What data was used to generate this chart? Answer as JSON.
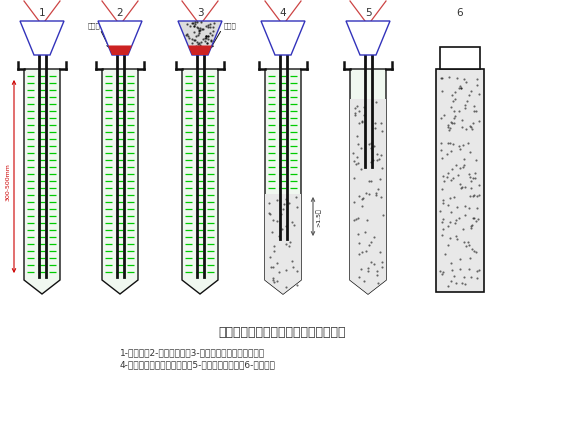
{
  "title": "导管法灌注水下混凝土的全过程示意图",
  "caption_line1": "1-下导管；2-放置封口板；3-在灌注漏斗中装入混凝土；",
  "caption_line2": "4-起拔封口板，初灌混凝土；5-连续灌注混凝土；6-起拔护筒",
  "labels": [
    "1",
    "2",
    "3",
    "4",
    "5",
    "6"
  ],
  "bg_color": "#ffffff",
  "green_dash_color": "#00cc00",
  "red_color": "#cc0000",
  "blue_color": "#3333bb",
  "dark_color": "#111111",
  "dim_color": "#cc0000",
  "text_color": "#333333",
  "concrete_bg": "#e8e8e8",
  "borehole_bg": "#f0f8f0",
  "funnel_red": "#cc2222",
  "arrow_color": "#555555"
}
